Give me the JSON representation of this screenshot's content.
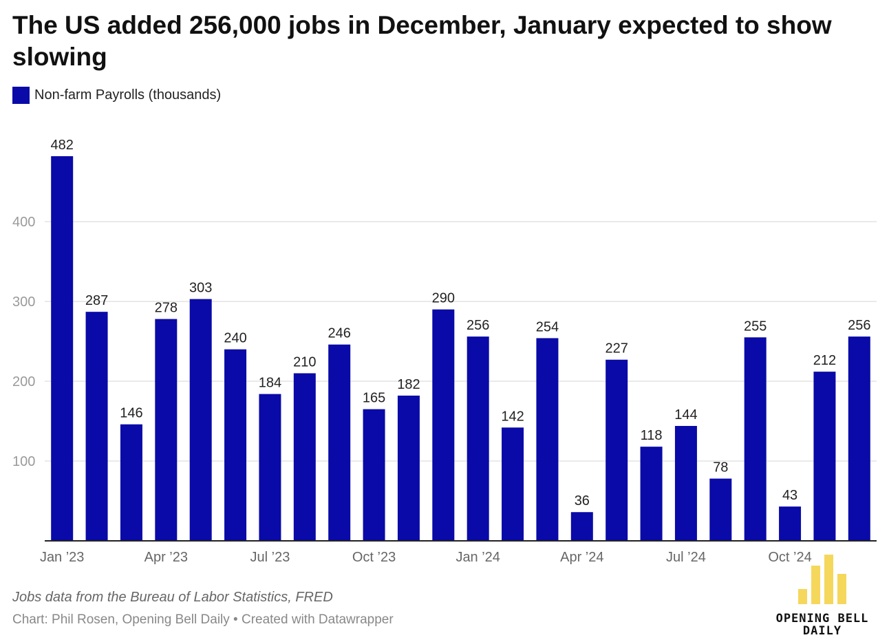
{
  "header": {
    "title": "The US added 256,000 jobs in December, January expected to show slowing"
  },
  "colors": {
    "bar": "#0a0aa8",
    "grid": "#e3e3e3",
    "axis": "#222222",
    "logo": "#f5d75c"
  },
  "chart_data": {
    "type": "bar",
    "title": "The US added 256,000 jobs in December, January expected to show slowing",
    "xlabel": "",
    "ylabel": "",
    "ylim": [
      0,
      482
    ],
    "yticks": [
      100,
      200,
      300,
      400
    ],
    "grid": true,
    "legend_position": "top-left",
    "categories": [
      "Jan 2023",
      "Feb 2023",
      "Mar 2023",
      "Apr 2023",
      "May 2023",
      "Jun 2023",
      "Jul 2023",
      "Aug 2023",
      "Sep 2023",
      "Oct 2023",
      "Nov 2023",
      "Dec 2023",
      "Jan 2024",
      "Feb 2024",
      "Mar 2024",
      "Apr 2024",
      "May 2024",
      "Jun 2024",
      "Jul 2024",
      "Aug 2024",
      "Sep 2024",
      "Oct 2024",
      "Nov 2024",
      "Dec 2024"
    ],
    "x_tick_labels": [
      {
        "index": 0,
        "label": "Jan ’23"
      },
      {
        "index": 3,
        "label": "Apr ’23"
      },
      {
        "index": 6,
        "label": "Jul ’23"
      },
      {
        "index": 9,
        "label": "Oct ’23"
      },
      {
        "index": 12,
        "label": "Jan ’24"
      },
      {
        "index": 15,
        "label": "Apr ’24"
      },
      {
        "index": 18,
        "label": "Jul ’24"
      },
      {
        "index": 21,
        "label": "Oct ’24"
      }
    ],
    "series": [
      {
        "name": "Non-farm Payrolls (thousands)",
        "values": [
          482,
          287,
          146,
          278,
          303,
          240,
          184,
          210,
          246,
          165,
          182,
          290,
          256,
          142,
          254,
          36,
          227,
          118,
          144,
          78,
          255,
          43,
          212,
          256
        ]
      }
    ]
  },
  "footer": {
    "source": "Jobs data from the Bureau of Labor Statistics, FRED",
    "credit": "Chart: Phil Rosen, Opening Bell Daily • Created with Datawrapper"
  },
  "logo": {
    "line1": "OPENING BELL",
    "line2": "DAILY"
  }
}
